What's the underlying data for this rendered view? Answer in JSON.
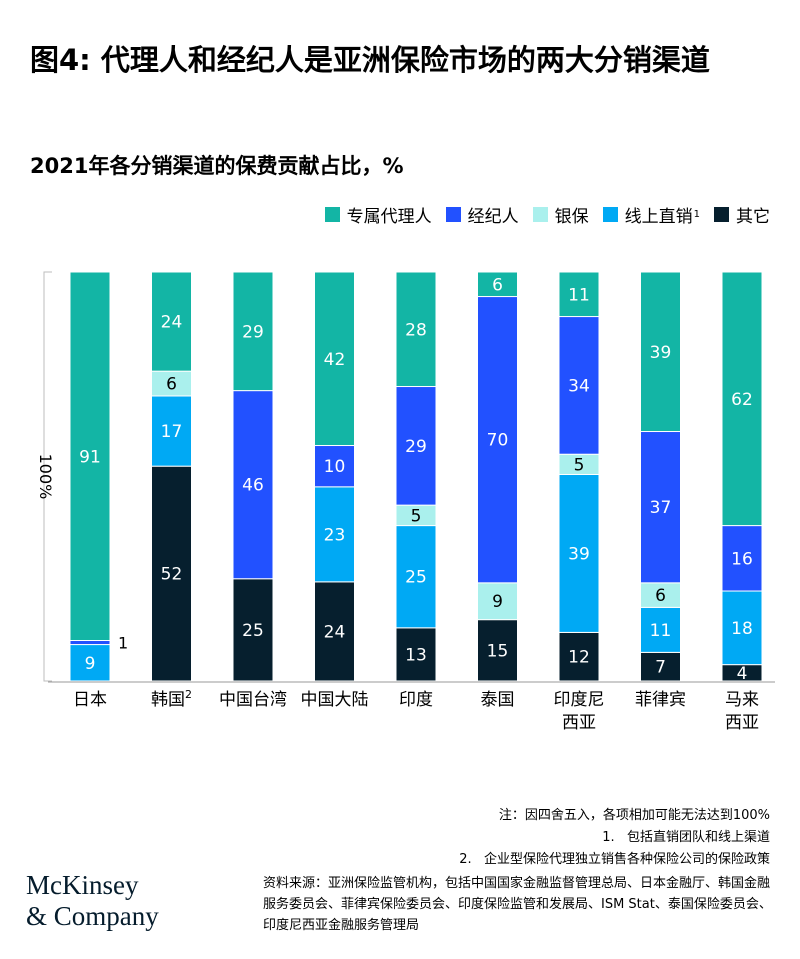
{
  "title": "图4: 代理人和经纪人是亚洲保险市场的两大分销渠道",
  "subtitle": "2021年各分销渠道的保费贡献占比，%",
  "legend": [
    {
      "label": "专属代理人",
      "color": "#13b5a5"
    },
    {
      "label": "经纪人",
      "color": "#2251ff"
    },
    {
      "label": "银保",
      "color": "#aaf0ed"
    },
    {
      "label": "线上直销",
      "sup": "1",
      "color": "#00a9f4"
    },
    {
      "label": "其它",
      "color": "#061f2e"
    }
  ],
  "chart_data": {
    "type": "bar",
    "stacked": true,
    "ylabel": "100%",
    "categories": [
      {
        "lines": [
          "日本"
        ],
        "sup": ""
      },
      {
        "lines": [
          "韩国"
        ],
        "sup": "2"
      },
      {
        "lines": [
          "中国台湾"
        ],
        "sup": ""
      },
      {
        "lines": [
          "中国大陆"
        ],
        "sup": ""
      },
      {
        "lines": [
          "印度"
        ],
        "sup": ""
      },
      {
        "lines": [
          "泰国"
        ],
        "sup": ""
      },
      {
        "lines": [
          "印度尼",
          "西亚"
        ],
        "sup": ""
      },
      {
        "lines": [
          "菲律宾"
        ],
        "sup": ""
      },
      {
        "lines": [
          "马来",
          "西亚"
        ],
        "sup": ""
      }
    ],
    "series": [
      {
        "name": "其它",
        "color": "#061f2e",
        "values": [
          0,
          52,
          25,
          24,
          13,
          15,
          12,
          7,
          4
        ]
      },
      {
        "name": "线上直销",
        "color": "#00a9f4",
        "values": [
          9,
          17,
          0,
          23,
          25,
          0,
          39,
          11,
          18
        ]
      },
      {
        "name": "银保",
        "color": "#aaf0ed",
        "values": [
          0,
          6,
          0,
          0,
          5,
          9,
          5,
          6,
          0
        ]
      },
      {
        "name": "经纪人",
        "color": "#2251ff",
        "values": [
          1,
          0,
          46,
          10,
          29,
          70,
          34,
          37,
          16
        ]
      },
      {
        "name": "专属代理人",
        "color": "#13b5a5",
        "values": [
          91,
          24,
          29,
          42,
          28,
          6,
          11,
          39,
          62
        ]
      }
    ]
  },
  "notes": [
    "注：因四舍五入，各项相加可能无法达到100%",
    "1.   包括直销团队和线上渠道",
    "2.   企业型保险代理独立销售各种保险公司的保险政策"
  ],
  "sources": "资料来源：亚洲保险监管机构，包括中国国家金融监督管理总局、日本金融厅、韩国金融服务委员会、菲律宾保险委员会、印度保险监管和发展局、ISM Stat、泰国保险委员会、印度尼西亚金融服务管理局",
  "logo": {
    "line1": "McKinsey",
    "line2": "& Company"
  }
}
